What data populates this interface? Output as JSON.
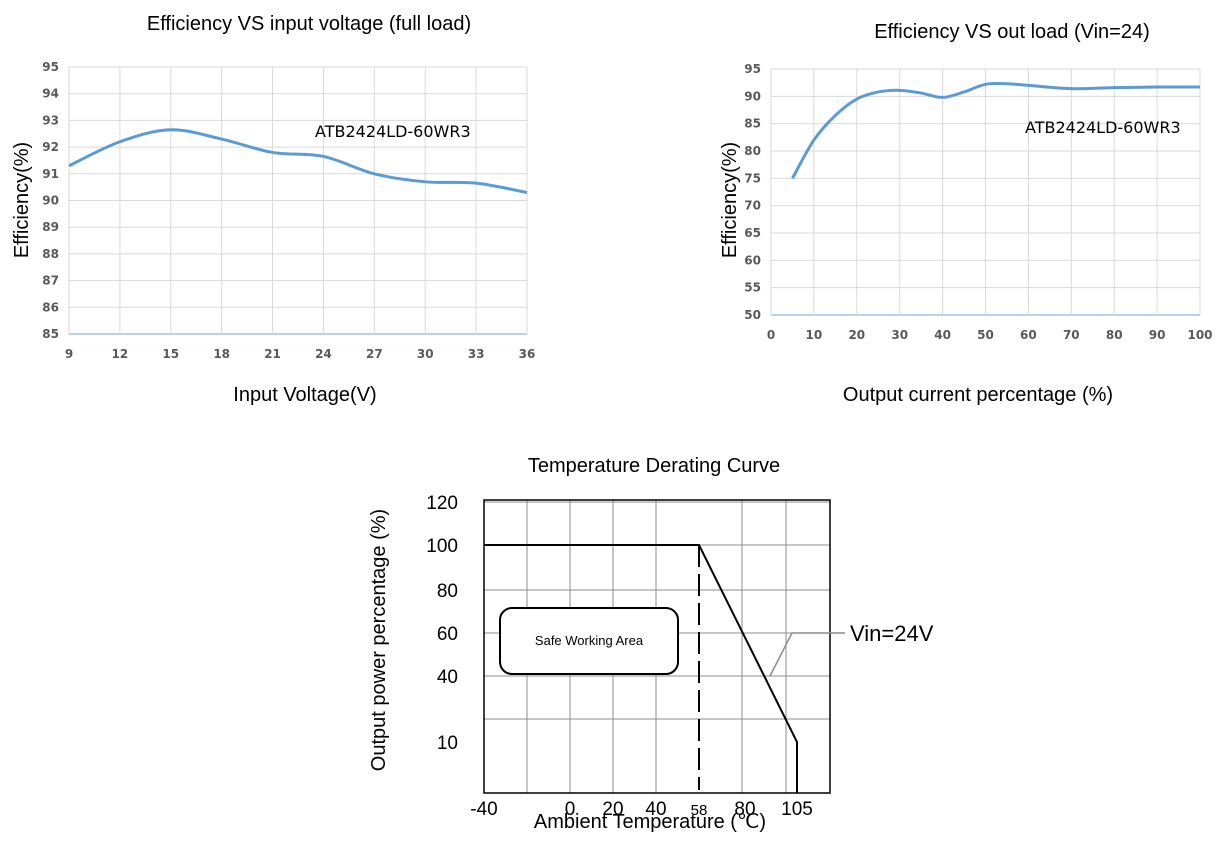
{
  "chart_data": [
    {
      "type": "line",
      "title": "Efficiency VS input voltage (full load)",
      "xlabel": "Input Voltage(V)",
      "ylabel": "Efficiency(%)",
      "annotation": "ATB2424LD-60WR3",
      "xlim": [
        9,
        36
      ],
      "ylim": [
        85,
        95
      ],
      "xticks": [
        9,
        12,
        15,
        18,
        21,
        24,
        27,
        30,
        33,
        36
      ],
      "yticks": [
        85,
        86,
        87,
        88,
        89,
        90,
        91,
        92,
        93,
        94,
        95
      ],
      "grid": true,
      "line_color": "#5b9bd5",
      "series": [
        {
          "x": [
            9,
            12,
            15,
            18,
            21,
            24,
            27,
            30,
            33,
            36
          ],
          "y": [
            91.3,
            92.2,
            92.65,
            92.3,
            91.8,
            91.65,
            91.0,
            90.7,
            90.65,
            90.3
          ]
        }
      ]
    },
    {
      "type": "line",
      "title": "Efficiency VS out load (Vin=24)",
      "xlabel": "Output current percentage (%)",
      "ylabel": "Efficiency(%)",
      "annotation": "ATB2424LD-60WR3",
      "xlim": [
        0,
        100
      ],
      "ylim": [
        50,
        95
      ],
      "xticks": [
        0,
        10,
        20,
        30,
        40,
        50,
        60,
        70,
        80,
        90,
        100
      ],
      "yticks": [
        50,
        55,
        60,
        65,
        70,
        75,
        80,
        85,
        90,
        95
      ],
      "grid": true,
      "line_color": "#5b9bd5",
      "series": [
        {
          "x": [
            5,
            10,
            15,
            20,
            25,
            30,
            35,
            40,
            45,
            50,
            55,
            60,
            70,
            80,
            90,
            100
          ],
          "y": [
            75,
            82,
            86.5,
            89.5,
            90.8,
            91.1,
            90.6,
            89.8,
            90.8,
            92.2,
            92.3,
            92.0,
            91.4,
            91.6,
            91.7,
            91.7
          ]
        }
      ]
    },
    {
      "type": "line",
      "title": "Temperature Derating Curve",
      "xlabel": "Ambient Temperature (℃)",
      "ylabel": "Output power percentage (%)",
      "xtick_labels": [
        "-40",
        "0",
        "20",
        "40",
        "58",
        "80",
        "105"
      ],
      "ytick_labels": [
        "120",
        "100",
        "80",
        "60",
        "40",
        "10"
      ],
      "grid": true,
      "area_label": "Safe Working Area",
      "series_label": "Vin=24V",
      "series": [
        {
          "x": [
            -40,
            58,
            105,
            105
          ],
          "y": [
            100,
            100,
            10,
            0
          ]
        }
      ]
    }
  ]
}
